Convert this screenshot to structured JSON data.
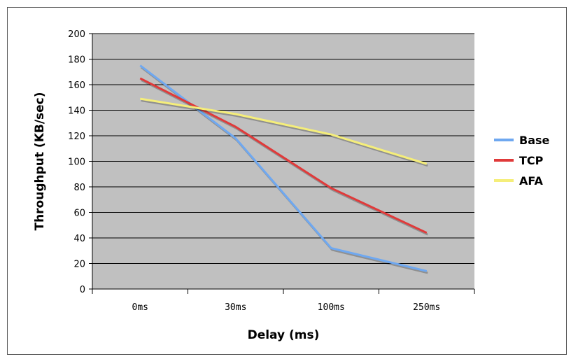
{
  "chart_data": {
    "type": "line",
    "title": "",
    "xlabel": "Delay (ms)",
    "ylabel": "Throughput (KB/sec)",
    "categories": [
      "0ms",
      "30ms",
      "100ms",
      "250ms"
    ],
    "ylim": [
      0,
      200
    ],
    "yticks": [
      0,
      20,
      40,
      60,
      80,
      100,
      120,
      140,
      160,
      180,
      200
    ],
    "grid": true,
    "legend": "right",
    "plot_background": "#c0c0c0",
    "series": [
      {
        "name": "Base",
        "color": "#6fa8f0",
        "values": [
          175,
          118,
          32,
          14
        ]
      },
      {
        "name": "TCP",
        "color": "#e03a3a",
        "values": [
          165,
          127,
          79,
          44
        ]
      },
      {
        "name": "AFA",
        "color": "#f5ee7a",
        "values": [
          149,
          137,
          121,
          98
        ]
      }
    ]
  }
}
